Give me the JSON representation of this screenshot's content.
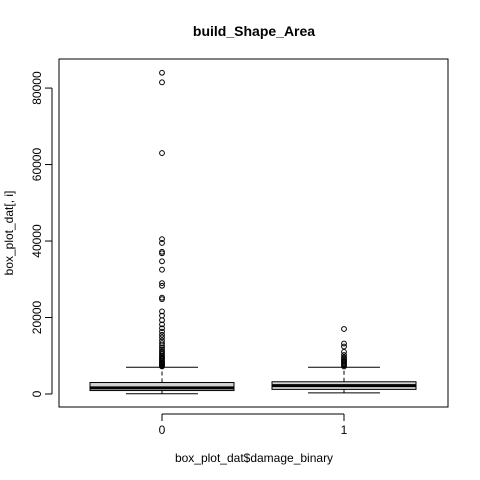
{
  "chart_data": {
    "type": "box",
    "title": "build_Shape_Area",
    "xlabel": "box_plot_dat$damage_binary",
    "ylabel": "box_plot_dat[, i]",
    "categories": [
      "0",
      "1"
    ],
    "ylim": [
      -3400,
      87600
    ],
    "yticks": [
      0,
      20000,
      40000,
      60000,
      80000
    ],
    "ytick_labels": [
      "0",
      "20000",
      "40000",
      "60000",
      "80000"
    ],
    "boxes": [
      {
        "category": "0",
        "whisker_low": 50,
        "q1": 900,
        "median": 1600,
        "q3": 3000,
        "whisker_high": 7000,
        "outliers": [
          7200,
          7400,
          7600,
          7800,
          8000,
          8200,
          8500,
          8800,
          9100,
          9400,
          9700,
          10000,
          10400,
          10800,
          11200,
          11700,
          12200,
          12700,
          13300,
          14000,
          14800,
          15500,
          16300,
          17200,
          18200,
          19300,
          20500,
          21600,
          24800,
          25200,
          28300,
          29000,
          32500,
          34700,
          36800,
          37200,
          39500,
          40500,
          63000,
          81500,
          84000
        ]
      },
      {
        "category": "1",
        "whisker_low": 300,
        "q1": 1200,
        "median": 2200,
        "q3": 3200,
        "whisker_high": 7000,
        "outliers": [
          7200,
          7500,
          7800,
          8100,
          8400,
          8700,
          9000,
          9300,
          9600,
          10200,
          11000,
          12400,
          13200,
          17000
        ]
      }
    ]
  }
}
